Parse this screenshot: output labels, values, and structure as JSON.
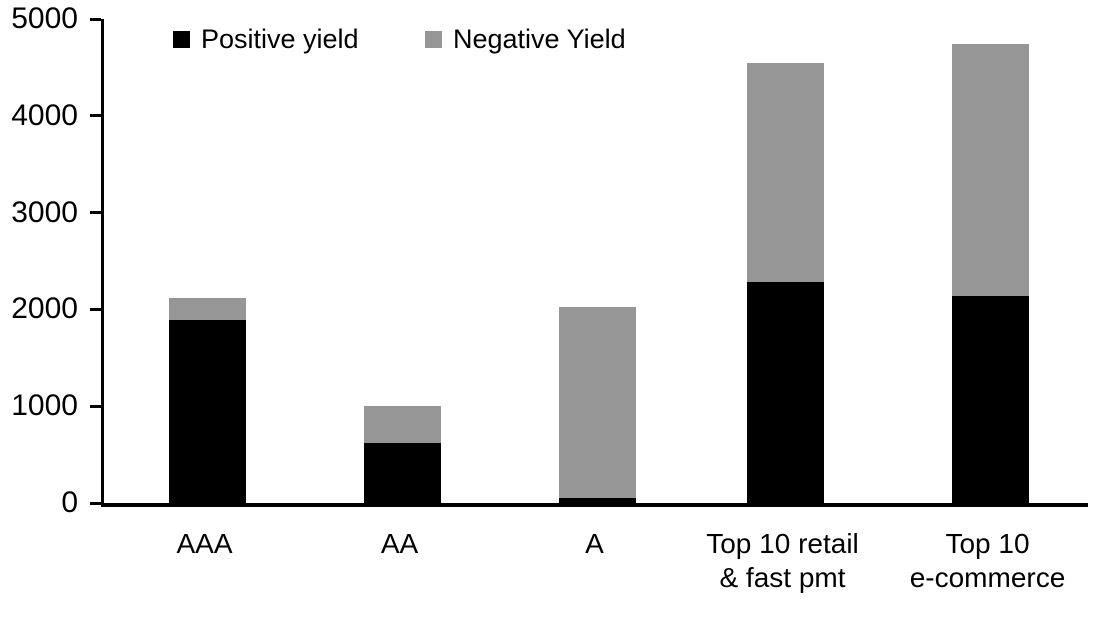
{
  "chart_data": {
    "type": "bar",
    "subtype": "stacked",
    "title": "",
    "xlabel": "",
    "ylabel": "",
    "categories": [
      "AAA",
      "AA",
      "A",
      "Top 10 retail\n& fast pmt",
      "Top 10\ne-commerce"
    ],
    "series": [
      {
        "name": "Positive yield",
        "color": "#000000",
        "values": [
          1890,
          620,
          50,
          2280,
          2140
        ]
      },
      {
        "name": "Negative Yield",
        "color": "#969696",
        "values": [
          230,
          380,
          1980,
          2270,
          2600
        ]
      }
    ],
    "totals": [
      2120,
      1000,
      2030,
      4550,
      4740
    ],
    "ylim": [
      0,
      5000
    ],
    "yticks": [
      0,
      1000,
      2000,
      3000,
      4000,
      5000
    ],
    "grid": false,
    "legend_position": "top-inside"
  },
  "colors": {
    "background": "#ffffff",
    "axis": "#000000",
    "text": "#000000",
    "positive_series": "#000000",
    "negative_series": "#969696"
  }
}
